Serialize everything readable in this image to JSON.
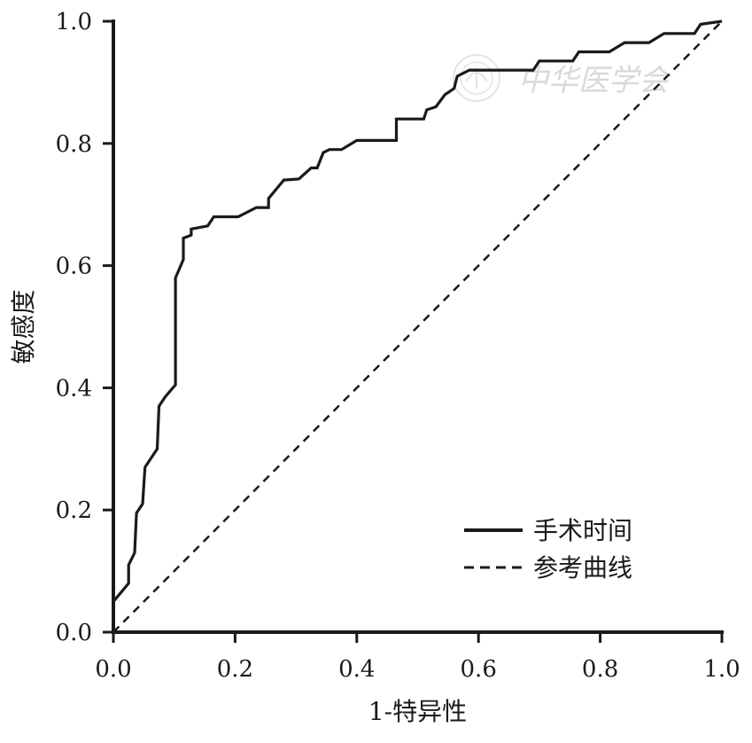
{
  "chart_data": {
    "type": "line",
    "xlabel": "1-特异性",
    "ylabel": "敏感度",
    "xlim": [
      0,
      1
    ],
    "ylim": [
      0,
      1
    ],
    "xticks": [
      "0.0",
      "0.2",
      "0.4",
      "0.6",
      "0.8",
      "1.0"
    ],
    "yticks": [
      "0.0",
      "0.2",
      "0.4",
      "0.6",
      "0.8",
      "1.0"
    ],
    "legend_position": "bottom-right",
    "grid": false,
    "watermark": "中华医学会",
    "series": [
      {
        "name": "手术时间",
        "style": "solid",
        "color": "#1a1a1a",
        "points": [
          [
            0.0,
            0.05
          ],
          [
            0.025,
            0.08
          ],
          [
            0.025,
            0.11
          ],
          [
            0.03,
            0.12
          ],
          [
            0.035,
            0.13
          ],
          [
            0.038,
            0.195
          ],
          [
            0.048,
            0.21
          ],
          [
            0.052,
            0.27
          ],
          [
            0.072,
            0.3
          ],
          [
            0.075,
            0.37
          ],
          [
            0.085,
            0.385
          ],
          [
            0.102,
            0.405
          ],
          [
            0.102,
            0.58
          ],
          [
            0.115,
            0.61
          ],
          [
            0.115,
            0.645
          ],
          [
            0.128,
            0.65
          ],
          [
            0.128,
            0.66
          ],
          [
            0.155,
            0.665
          ],
          [
            0.165,
            0.68
          ],
          [
            0.205,
            0.68
          ],
          [
            0.235,
            0.695
          ],
          [
            0.255,
            0.695
          ],
          [
            0.255,
            0.71
          ],
          [
            0.28,
            0.74
          ],
          [
            0.305,
            0.742
          ],
          [
            0.325,
            0.76
          ],
          [
            0.335,
            0.76
          ],
          [
            0.345,
            0.785
          ],
          [
            0.355,
            0.79
          ],
          [
            0.375,
            0.79
          ],
          [
            0.4,
            0.805
          ],
          [
            0.465,
            0.805
          ],
          [
            0.465,
            0.84
          ],
          [
            0.51,
            0.84
          ],
          [
            0.515,
            0.855
          ],
          [
            0.53,
            0.86
          ],
          [
            0.545,
            0.88
          ],
          [
            0.56,
            0.89
          ],
          [
            0.565,
            0.91
          ],
          [
            0.585,
            0.92
          ],
          [
            0.69,
            0.92
          ],
          [
            0.7,
            0.935
          ],
          [
            0.755,
            0.935
          ],
          [
            0.765,
            0.95
          ],
          [
            0.815,
            0.95
          ],
          [
            0.84,
            0.965
          ],
          [
            0.88,
            0.965
          ],
          [
            0.905,
            0.98
          ],
          [
            0.955,
            0.98
          ],
          [
            0.965,
            0.995
          ],
          [
            1.0,
            1.0
          ]
        ]
      },
      {
        "name": "参考曲线",
        "style": "dashed",
        "color": "#1a1a1a",
        "points": [
          [
            0,
            0
          ],
          [
            1,
            1
          ]
        ]
      }
    ]
  }
}
